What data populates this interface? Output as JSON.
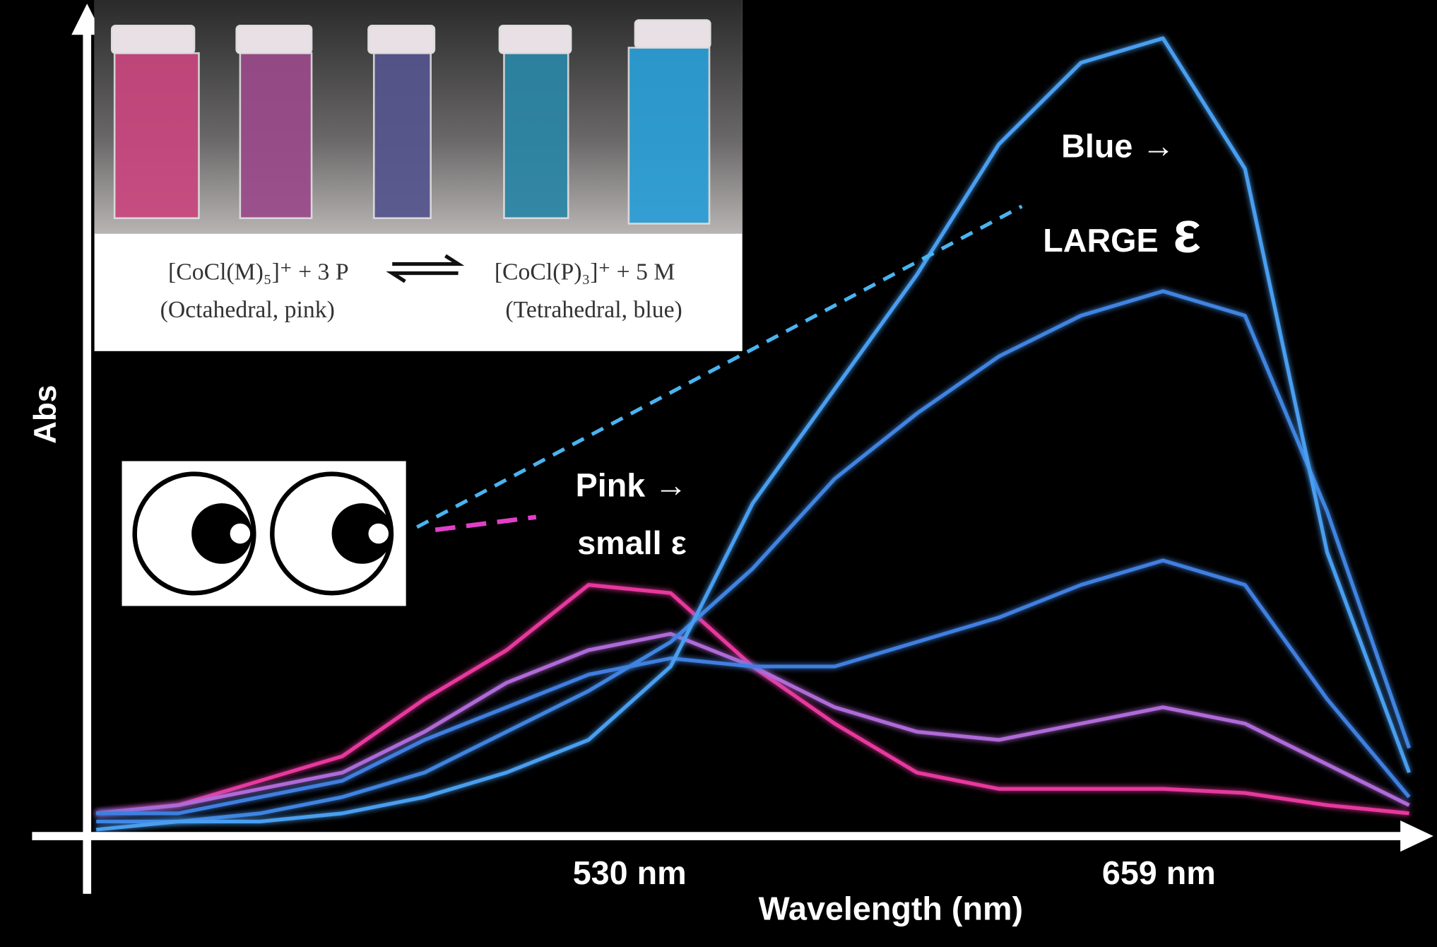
{
  "chart_data": {
    "type": "line",
    "y_axis_label": "Abs",
    "x_axis_label": "Wavelength (nm)",
    "x": [
      400,
      420,
      440,
      460,
      480,
      500,
      520,
      540,
      560,
      580,
      600,
      620,
      640,
      660,
      680,
      700,
      720
    ],
    "xlim": [
      400,
      725
    ],
    "xticks": [
      {
        "value": 530,
        "label": "530 nm"
      },
      {
        "value": 659,
        "label": "659 nm"
      }
    ],
    "ylim": [
      0,
      1
    ],
    "series": [
      {
        "color": "#e8399e",
        "values": [
          0.02,
          0.03,
          0.06,
          0.09,
          0.16,
          0.22,
          0.3,
          0.29,
          0.2,
          0.13,
          0.07,
          0.05,
          0.05,
          0.05,
          0.045,
          0.03,
          0.02
        ]
      },
      {
        "color": "#b06ad8",
        "values": [
          0.02,
          0.03,
          0.05,
          0.07,
          0.12,
          0.18,
          0.22,
          0.24,
          0.2,
          0.15,
          0.12,
          0.11,
          0.13,
          0.15,
          0.13,
          0.08,
          0.03
        ]
      },
      {
        "color": "#3f7fe0",
        "values": [
          0.02,
          0.02,
          0.04,
          0.06,
          0.11,
          0.15,
          0.19,
          0.21,
          0.2,
          0.2,
          0.23,
          0.26,
          0.3,
          0.33,
          0.3,
          0.16,
          0.04
        ]
      },
      {
        "color": "#3f84e0",
        "values": [
          0.01,
          0.01,
          0.02,
          0.04,
          0.07,
          0.12,
          0.17,
          0.23,
          0.32,
          0.43,
          0.51,
          0.58,
          0.63,
          0.66,
          0.63,
          0.39,
          0.1
        ]
      },
      {
        "color": "#4a9ef0",
        "values": [
          0.0,
          0.01,
          0.01,
          0.02,
          0.04,
          0.07,
          0.11,
          0.2,
          0.4,
          0.54,
          0.68,
          0.84,
          0.94,
          0.97,
          0.81,
          0.34,
          0.07
        ]
      }
    ],
    "annotations": {
      "blue": "Blue →",
      "large": "LARGE",
      "large_eps": "ε",
      "pink": "Pink →",
      "small": "small ε"
    },
    "inset": {
      "left_species": "[CoCl(M)₅]⁺ + 3 P",
      "left_geometry": "(Octahedral, pink)",
      "right_species": "[CoCl(P)₃]⁺ + 5 M",
      "right_geometry": "(Tetrahedral, blue)"
    }
  }
}
